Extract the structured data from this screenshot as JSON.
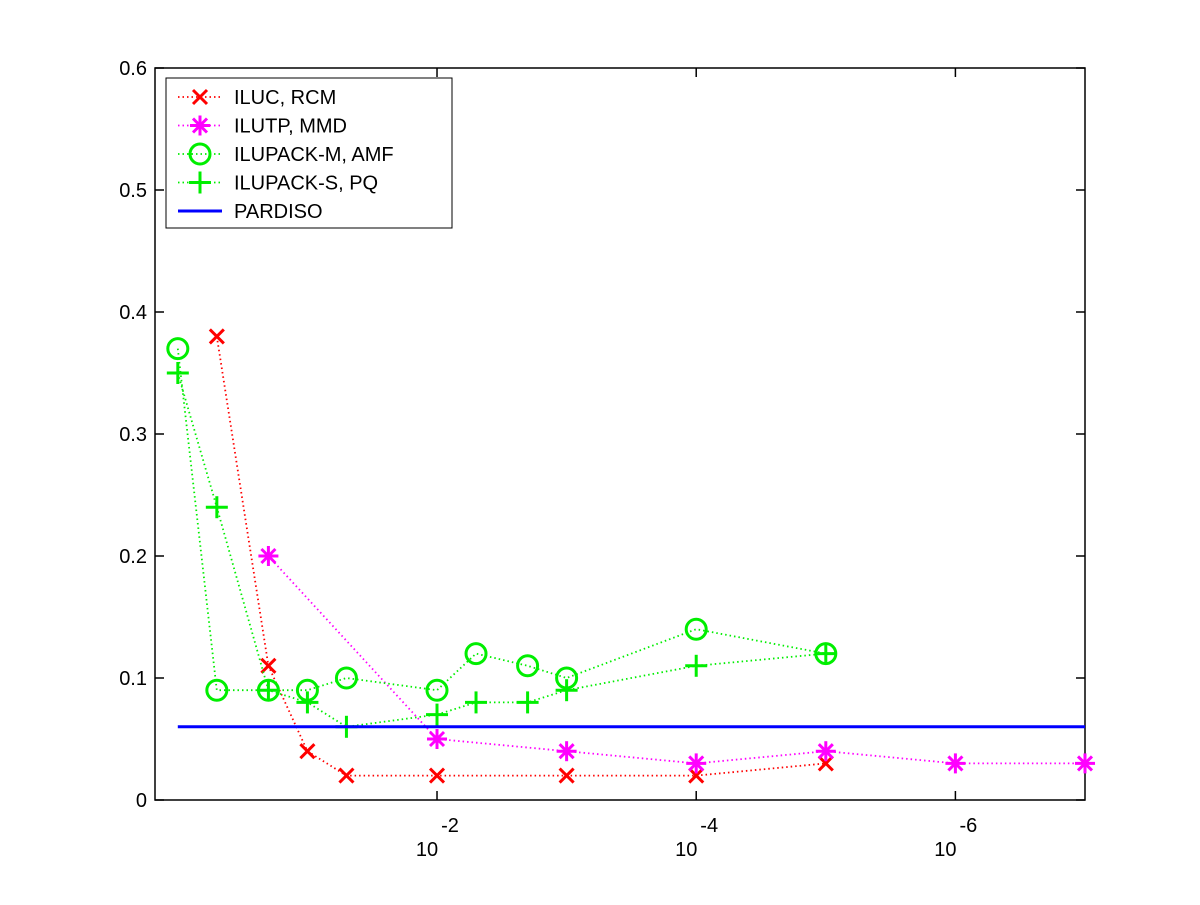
{
  "chart_data": {
    "type": "line",
    "title": "",
    "xlabel": "",
    "ylabel": "",
    "x_scale": "log",
    "x_reversed": true,
    "x_range": [
      1.5,
      1e-07
    ],
    "y_range": [
      0,
      0.6
    ],
    "y_ticks": [
      "0",
      "0.1",
      "0.2",
      "0.3",
      "0.4",
      "0.5",
      "0.6"
    ],
    "x_ticks": [
      {
        "value": 0.01,
        "base": "10",
        "exponent": "-2"
      },
      {
        "value": 0.0001,
        "base": "10",
        "exponent": "-4"
      },
      {
        "value": 1e-06,
        "base": "10",
        "exponent": "-6"
      }
    ],
    "grid": false,
    "legend_position": "top-left",
    "series": [
      {
        "name": "ILUC, RCM",
        "color": "#ff0000",
        "marker": "x",
        "linestyle": "dotted",
        "x": [
          0.5,
          0.2,
          0.1,
          0.05,
          0.01,
          0.001,
          0.0001,
          1e-05
        ],
        "y": [
          0.38,
          0.11,
          0.04,
          0.02,
          0.02,
          0.02,
          0.02,
          0.03
        ]
      },
      {
        "name": "ILUTP, MMD",
        "color": "#ff00ff",
        "marker": "star",
        "linestyle": "dotted",
        "x": [
          0.2,
          0.01,
          0.001,
          0.0001,
          1e-05,
          1e-06,
          1e-07
        ],
        "y": [
          0.2,
          0.05,
          0.04,
          0.03,
          0.04,
          0.03,
          0.03
        ]
      },
      {
        "name": "ILUPACK-M, AMF",
        "color": "#00ee00",
        "marker": "circle",
        "linestyle": "dotted",
        "x": [
          1,
          0.5,
          0.2,
          0.1,
          0.05,
          0.01,
          0.005,
          0.002,
          0.001,
          0.0001,
          1e-05
        ],
        "y": [
          0.37,
          0.09,
          0.09,
          0.09,
          0.1,
          0.09,
          0.12,
          0.11,
          0.1,
          0.14,
          0.12
        ]
      },
      {
        "name": "ILUPACK-S, PQ",
        "color": "#00ee00",
        "marker": "plus",
        "linestyle": "dotted",
        "x": [
          1,
          0.5,
          0.2,
          0.1,
          0.05,
          0.01,
          0.005,
          0.002,
          0.001,
          0.0001,
          1e-05
        ],
        "y": [
          0.35,
          0.24,
          0.09,
          0.08,
          0.06,
          0.07,
          0.08,
          0.08,
          0.09,
          0.11,
          0.12
        ]
      },
      {
        "name": "PARDISO",
        "color": "#0000ff",
        "marker": "none",
        "linestyle": "solid",
        "x": [
          1,
          1e-07
        ],
        "y": [
          0.06,
          0.06
        ]
      }
    ]
  }
}
